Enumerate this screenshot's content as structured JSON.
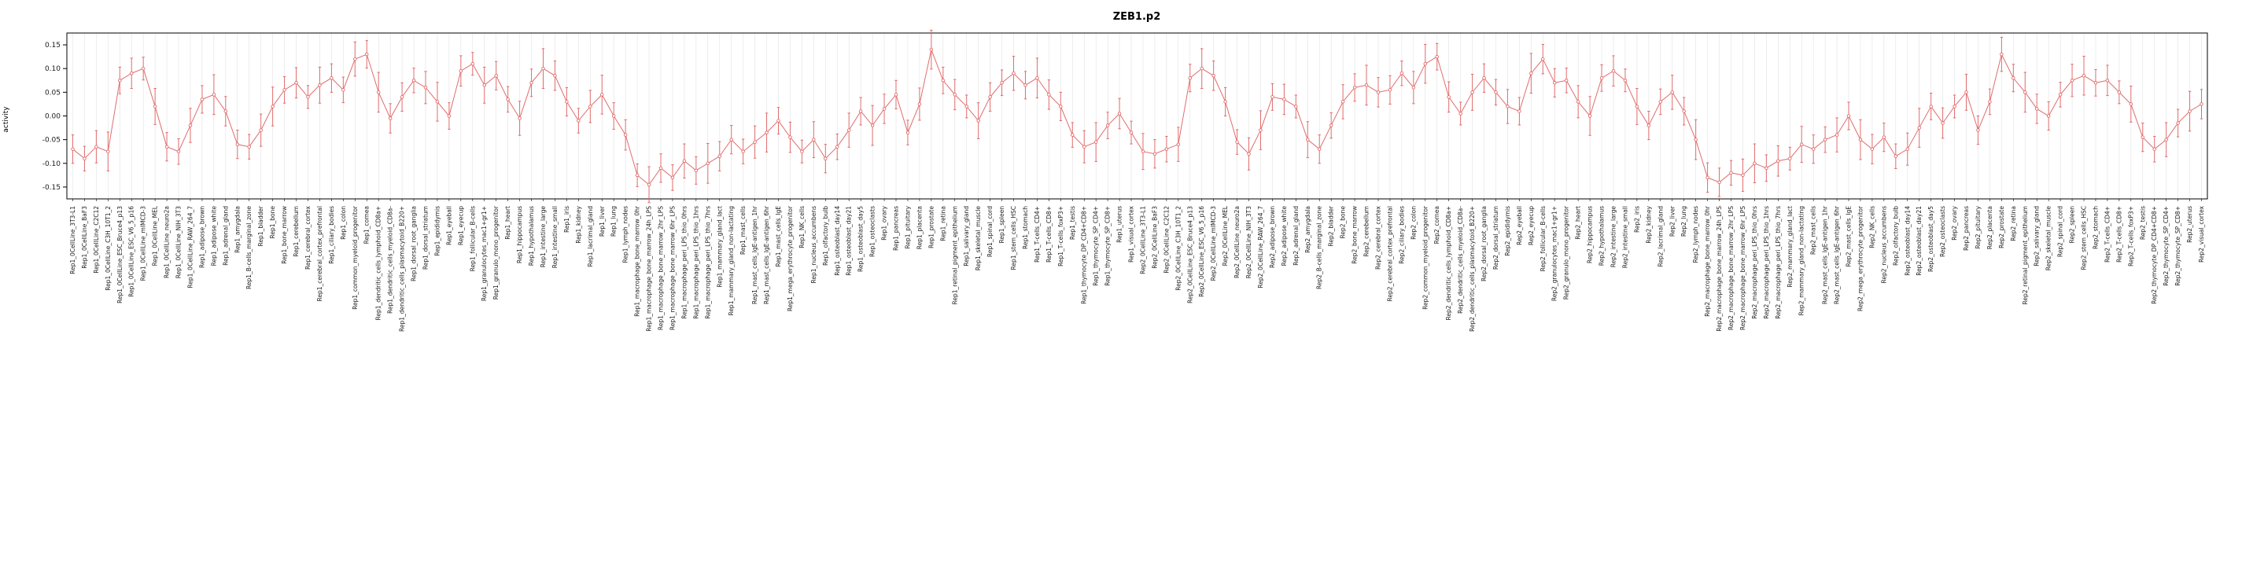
{
  "page": {
    "background": "#ffffff"
  },
  "chart_data": {
    "type": "line",
    "title": "ZEB1.p2",
    "ylabel": "activity",
    "xlabel": "",
    "ylim": [
      -0.175,
      0.175
    ],
    "yticks": [
      -0.15,
      -0.1,
      -0.05,
      0.0,
      0.05,
      0.1,
      0.15
    ],
    "grid": "vertical-line-per-category",
    "legend": "none",
    "point_style": "open-circle",
    "error_bars": true,
    "colors": {
      "series": "#e06c6c",
      "grid": "#e2e2e2",
      "axis": "#000000",
      "tick_text": "#1a1a1a"
    },
    "replicates": [
      "Rep1",
      "Rep2"
    ],
    "base_categories": [
      "0CellLine_3T3-L1",
      "0CellLine_BaF3",
      "0CellLine_C2C12",
      "0CellLine_C3H_10T1_2",
      "0CellLine_ESC_Bruce4_p13",
      "0CellLine_ESC_V6_5_p16",
      "0CellLine_mIMCD-3",
      "0CellLine_MEL",
      "0CellLine_neuro2a",
      "0CellLine_NIH_3T3",
      "0CellLine_RAW_264_7",
      "adipose_brown",
      "adipose_white",
      "adrenal_gland",
      "amygdala",
      "B-cells_marginal_zone",
      "bladder",
      "bone",
      "bone_marrow",
      "cerebellum",
      "cerebral_cortex",
      "cerebral_cortex_prefrontal",
      "ciliary_bodies",
      "colon",
      "common_myeloid_progenitor",
      "cornea",
      "dendritic_cells_lymphoid_CD8a+",
      "dendritic_cells_myeloid_CD8a-",
      "dendritic_cells_plasmacytoid_B220+",
      "dorsal_root_ganglia",
      "dorsal_striatum",
      "epididymis",
      "eyeball",
      "eyecup",
      "follicular_B-cells",
      "granulocytes_mac1+gr1+",
      "granulo_mono_progenitor",
      "heart",
      "hippocampus",
      "hypothalamus",
      "intestine_large",
      "intestine_small",
      "iris",
      "kidney",
      "lacrimal_gland",
      "liver",
      "lung",
      "lymph_nodes",
      "macrophage_bone_marrow_0hr",
      "macrophage_bone_marrow_24h_LPS",
      "macrophage_bone_marrow_2hr_LPS",
      "macrophage_bone_marrow_6hr_LPS",
      "macrophage_peri_LPS_thio_0hrs",
      "macrophage_peri_LPS_thio_1hrs",
      "macrophage_peri_LPS_thio_7hrs",
      "mammary_gland_lact",
      "mammary_gland_non-lactating",
      "mast_cells",
      "mast_cells_IgE-antigen_1hr",
      "mast_cells_IgE-antigen_6hr",
      "mast_cells_IgE",
      "mega_erythrocyte_progenitor",
      "NK_cells",
      "nucleus_accumbens",
      "olfactory_bulb",
      "osteoblast_day14",
      "osteoblast_day21",
      "osteoblast_day5",
      "osteoclasts",
      "ovary",
      "pancreas",
      "pituitary",
      "placenta",
      "prostate",
      "retina",
      "retinal_pigment_epithelium",
      "salivary_gland",
      "skeletal_muscle",
      "spinal_cord",
      "spleen",
      "stem_cells_HSC",
      "stomach",
      "T-cells_CD4+",
      "T-cells_CD8+",
      "T-cells_foxP3+",
      "testis",
      "thymocyte_DP_CD4+CD8+",
      "thymocyte_SP_CD4+",
      "thymocyte_SP_CD8+",
      "uterus",
      "visual_cortex"
    ],
    "series": [
      {
        "name": "Rep1",
        "values": [
          -0.07,
          -0.09,
          -0.065,
          -0.075,
          0.075,
          0.09,
          0.1,
          0.02,
          -0.065,
          -0.075,
          -0.02,
          0.035,
          0.045,
          0.01,
          -0.06,
          -0.065,
          -0.03,
          0.02,
          0.055,
          0.07,
          0.04,
          0.065,
          0.08,
          0.055,
          0.12,
          0.13,
          0.05,
          -0.005,
          0.04,
          0.075,
          0.06,
          0.03,
          0.0,
          0.095,
          0.11,
          0.065,
          0.085,
          0.035,
          -0.005,
          0.07,
          0.1,
          0.085,
          0.03,
          -0.01,
          0.02,
          0.045,
          0.0,
          -0.04,
          -0.125,
          -0.145,
          -0.11,
          -0.13,
          -0.095,
          -0.115,
          -0.1,
          -0.085,
          -0.05,
          -0.075,
          -0.055,
          -0.035,
          -0.01,
          -0.045,
          -0.075,
          -0.05,
          -0.09,
          -0.065,
          -0.03,
          0.01,
          -0.02,
          0.015,
          0.045,
          -0.035,
          0.025,
          0.14,
          0.075,
          0.045,
          0.02,
          -0.01,
          0.04,
          0.07,
          0.09,
          0.065,
          0.08,
          0.045,
          0.02,
          -0.04,
          -0.065,
          -0.055,
          -0.02,
          0.005,
          -0.035
        ]
      },
      {
        "name": "Rep2",
        "values": [
          -0.075,
          -0.08,
          -0.07,
          -0.06,
          0.08,
          0.1,
          0.085,
          0.03,
          -0.055,
          -0.08,
          -0.03,
          0.04,
          0.035,
          0.02,
          -0.05,
          -0.07,
          -0.02,
          0.03,
          0.06,
          0.065,
          0.05,
          0.055,
          0.09,
          0.06,
          0.11,
          0.125,
          0.04,
          0.005,
          0.05,
          0.08,
          0.05,
          0.02,
          0.01,
          0.09,
          0.12,
          0.07,
          0.075,
          0.03,
          0.0,
          0.08,
          0.095,
          0.075,
          0.02,
          -0.02,
          0.03,
          0.05,
          0.01,
          -0.05,
          -0.13,
          -0.14,
          -0.12,
          -0.125,
          -0.1,
          -0.11,
          -0.095,
          -0.09,
          -0.06,
          -0.07,
          -0.05,
          -0.04,
          0.0,
          -0.05,
          -0.07,
          -0.045,
          -0.085,
          -0.07,
          -0.025,
          0.02,
          -0.015,
          0.02,
          0.05,
          -0.03,
          0.03,
          0.13,
          0.08,
          0.05,
          0.015,
          0.0,
          0.045,
          0.075,
          0.085,
          0.07,
          0.075,
          0.05,
          0.025,
          -0.045,
          -0.07,
          -0.05,
          -0.015,
          0.01,
          0.025
        ]
      }
    ],
    "errors_cycle": [
      0.03,
      0.026,
      0.034,
      0.041,
      0.028,
      0.032,
      0.024,
      0.038,
      0.03,
      0.027,
      0.036,
      0.029,
      0.042,
      0.031
    ]
  }
}
